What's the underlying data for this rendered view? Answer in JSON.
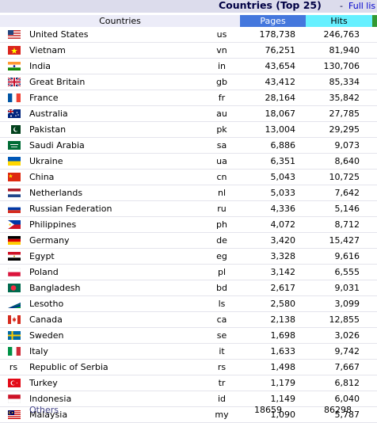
{
  "section": {
    "title": "Countries (Top 25)",
    "separator": "-",
    "full_list_link": "Full lis"
  },
  "columns": {
    "countries": "Countries",
    "pages": "Pages",
    "hits": "Hits"
  },
  "rows": [
    {
      "flag": "us-flag-icon",
      "name": "United States",
      "code": "us",
      "pages": "178,738",
      "hits": "246,763"
    },
    {
      "flag": "vn-flag-icon",
      "name": "Vietnam",
      "code": "vn",
      "pages": "76,251",
      "hits": "81,940"
    },
    {
      "flag": "in-flag-icon",
      "name": "India",
      "code": "in",
      "pages": "43,654",
      "hits": "130,706"
    },
    {
      "flag": "gb-flag-icon",
      "name": "Great Britain",
      "code": "gb",
      "pages": "43,412",
      "hits": "85,334"
    },
    {
      "flag": "fr-flag-icon",
      "name": "France",
      "code": "fr",
      "pages": "28,164",
      "hits": "35,842"
    },
    {
      "flag": "au-flag-icon",
      "name": "Australia",
      "code": "au",
      "pages": "18,067",
      "hits": "27,785"
    },
    {
      "flag": "pk-flag-icon",
      "name": "Pakistan",
      "code": "pk",
      "pages": "13,004",
      "hits": "29,295"
    },
    {
      "flag": "sa-flag-icon",
      "name": "Saudi Arabia",
      "code": "sa",
      "pages": "6,886",
      "hits": "9,073"
    },
    {
      "flag": "ua-flag-icon",
      "name": "Ukraine",
      "code": "ua",
      "pages": "6,351",
      "hits": "8,640"
    },
    {
      "flag": "cn-flag-icon",
      "name": "China",
      "code": "cn",
      "pages": "5,043",
      "hits": "10,725"
    },
    {
      "flag": "nl-flag-icon",
      "name": "Netherlands",
      "code": "nl",
      "pages": "5,033",
      "hits": "7,642"
    },
    {
      "flag": "ru-flag-icon",
      "name": "Russian Federation",
      "code": "ru",
      "pages": "4,336",
      "hits": "5,146"
    },
    {
      "flag": "ph-flag-icon",
      "name": "Philippines",
      "code": "ph",
      "pages": "4,072",
      "hits": "8,712"
    },
    {
      "flag": "de-flag-icon",
      "name": "Germany",
      "code": "de",
      "pages": "3,420",
      "hits": "15,427"
    },
    {
      "flag": "eg-flag-icon",
      "name": "Egypt",
      "code": "eg",
      "pages": "3,328",
      "hits": "9,616"
    },
    {
      "flag": "pl-flag-icon",
      "name": "Poland",
      "code": "pl",
      "pages": "3,142",
      "hits": "6,555"
    },
    {
      "flag": "bd-flag-icon",
      "name": "Bangladesh",
      "code": "bd",
      "pages": "2,617",
      "hits": "9,031"
    },
    {
      "flag": "ls-flag-icon",
      "name": "Lesotho",
      "code": "ls",
      "pages": "2,580",
      "hits": "3,099"
    },
    {
      "flag": "ca-flag-icon",
      "name": "Canada",
      "code": "ca",
      "pages": "2,138",
      "hits": "12,855"
    },
    {
      "flag": "se-flag-icon",
      "name": "Sweden",
      "code": "se",
      "pages": "1,698",
      "hits": "3,026"
    },
    {
      "flag": "it-flag-icon",
      "name": "Italy",
      "code": "it",
      "pages": "1,633",
      "hits": "9,742"
    },
    {
      "flag": "rs-flag-placeholder",
      "flag_text": "rs",
      "name": "Republic of Serbia",
      "code": "rs",
      "pages": "1,498",
      "hits": "7,667"
    },
    {
      "flag": "tr-flag-icon",
      "name": "Turkey",
      "code": "tr",
      "pages": "1,179",
      "hits": "6,812"
    },
    {
      "flag": "id-flag-icon",
      "name": "Indonesia",
      "code": "id",
      "pages": "1,149",
      "hits": "6,040"
    },
    {
      "flag": "my-flag-icon",
      "name": "Malaysia",
      "code": "my",
      "pages": "1,090",
      "hits": "5,787"
    }
  ],
  "others": {
    "label": "Others",
    "pages": "18659",
    "hits": "86298"
  },
  "colors": {
    "pages_header": "#4477dd",
    "hits_header": "#66f0ff",
    "extra_header": "#339933",
    "title_bar": "#dcdcec",
    "link": "#0000cc"
  }
}
